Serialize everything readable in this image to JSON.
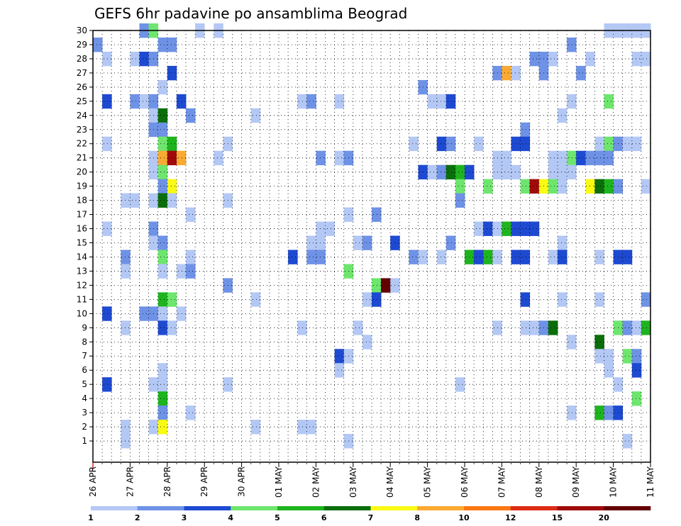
{
  "chart_data": {
    "type": "heatmap",
    "title": "GEFS 6hr padavine po ansamblima Beograd",
    "y_members": [
      "1",
      "2",
      "3",
      "4",
      "5",
      "6",
      "7",
      "8",
      "9",
      "10",
      "11",
      "12",
      "13",
      "14",
      "15",
      "16",
      "17",
      "18",
      "19",
      "20",
      "21",
      "22",
      "23",
      "24",
      "25",
      "26",
      "27",
      "28",
      "29",
      "30"
    ],
    "x_dates": [
      "26 APR",
      "27 APR",
      "28 APR",
      "29 APR",
      "30 APR",
      "01 MAY",
      "02 MAY",
      "03 MAY",
      "04 MAY",
      "05 MAY",
      "06 MAY",
      "07 MAY",
      "08 MAY",
      "09 MAY",
      "10 MAY",
      "11 MAY"
    ],
    "steps_per_day": 4,
    "total_steps": 60,
    "grid": true,
    "legend": {
      "position": "bottom",
      "labels": [
        "1",
        "2",
        "3",
        "4",
        "5",
        "6",
        "7",
        "8",
        "10",
        "12",
        "15",
        "20"
      ],
      "colors": [
        "#b4c8f5",
        "#6e92e6",
        "#1e4ad2",
        "#6ee66e",
        "#1eb41e",
        "#0a6e0a",
        "#fafa14",
        "#faaa32",
        "#fa7814",
        "#dc2d14",
        "#a00a0a",
        "#640000"
      ]
    },
    "cells": [
      [
        30,
        5,
        2
      ],
      [
        30,
        6,
        4
      ],
      [
        30,
        11,
        1
      ],
      [
        30,
        13,
        1
      ],
      [
        30,
        55,
        1
      ],
      [
        30,
        56,
        1
      ],
      [
        30,
        57,
        1
      ],
      [
        30,
        58,
        1
      ],
      [
        30,
        59,
        1
      ],
      [
        29,
        0,
        2
      ],
      [
        29,
        7,
        2
      ],
      [
        29,
        8,
        2
      ],
      [
        29,
        51,
        2
      ],
      [
        28,
        1,
        1
      ],
      [
        28,
        4,
        1
      ],
      [
        28,
        5,
        3
      ],
      [
        28,
        6,
        2
      ],
      [
        28,
        47,
        2
      ],
      [
        28,
        48,
        2
      ],
      [
        28,
        49,
        1
      ],
      [
        28,
        53,
        1
      ],
      [
        28,
        58,
        1
      ],
      [
        28,
        59,
        1
      ],
      [
        27,
        8,
        3
      ],
      [
        27,
        43,
        2
      ],
      [
        27,
        44,
        8
      ],
      [
        27,
        45,
        1
      ],
      [
        27,
        48,
        2
      ],
      [
        27,
        52,
        2
      ],
      [
        26,
        7,
        1
      ],
      [
        26,
        35,
        2
      ],
      [
        25,
        1,
        3
      ],
      [
        25,
        4,
        2
      ],
      [
        25,
        5,
        1
      ],
      [
        25,
        6,
        2
      ],
      [
        25,
        9,
        3
      ],
      [
        25,
        22,
        1
      ],
      [
        25,
        23,
        2
      ],
      [
        25,
        26,
        1
      ],
      [
        25,
        36,
        1
      ],
      [
        25,
        37,
        1
      ],
      [
        25,
        38,
        3
      ],
      [
        25,
        51,
        1
      ],
      [
        25,
        55,
        4
      ],
      [
        24,
        6,
        1
      ],
      [
        24,
        7,
        6
      ],
      [
        24,
        10,
        2
      ],
      [
        24,
        17,
        1
      ],
      [
        24,
        50,
        1
      ],
      [
        23,
        6,
        2
      ],
      [
        23,
        7,
        2
      ],
      [
        23,
        46,
        2
      ],
      [
        22,
        1,
        1
      ],
      [
        22,
        7,
        4
      ],
      [
        22,
        8,
        5
      ],
      [
        22,
        14,
        1
      ],
      [
        22,
        34,
        1
      ],
      [
        22,
        37,
        3
      ],
      [
        22,
        38,
        2
      ],
      [
        22,
        41,
        1
      ],
      [
        22,
        45,
        3
      ],
      [
        22,
        46,
        3
      ],
      [
        22,
        54,
        1
      ],
      [
        22,
        55,
        4
      ],
      [
        22,
        56,
        2
      ],
      [
        22,
        57,
        1
      ],
      [
        22,
        58,
        1
      ],
      [
        21,
        6,
        1
      ],
      [
        21,
        7,
        8
      ],
      [
        21,
        8,
        11
      ],
      [
        21,
        9,
        8
      ],
      [
        21,
        13,
        1
      ],
      [
        21,
        24,
        2
      ],
      [
        21,
        26,
        1
      ],
      [
        21,
        27,
        2
      ],
      [
        21,
        43,
        1
      ],
      [
        21,
        44,
        1
      ],
      [
        21,
        49,
        1
      ],
      [
        21,
        50,
        1
      ],
      [
        21,
        51,
        4
      ],
      [
        21,
        52,
        3
      ],
      [
        21,
        53,
        2
      ],
      [
        21,
        54,
        2
      ],
      [
        21,
        55,
        2
      ],
      [
        20,
        6,
        1
      ],
      [
        20,
        7,
        4
      ],
      [
        20,
        35,
        3
      ],
      [
        20,
        36,
        1
      ],
      [
        20,
        37,
        2
      ],
      [
        20,
        38,
        6
      ],
      [
        20,
        39,
        5
      ],
      [
        20,
        40,
        3
      ],
      [
        20,
        43,
        1
      ],
      [
        20,
        44,
        1
      ],
      [
        20,
        45,
        1
      ],
      [
        20,
        49,
        1
      ],
      [
        20,
        50,
        1
      ],
      [
        20,
        51,
        1
      ],
      [
        19,
        7,
        2
      ],
      [
        19,
        8,
        7
      ],
      [
        19,
        39,
        4
      ],
      [
        19,
        42,
        4
      ],
      [
        19,
        46,
        4
      ],
      [
        19,
        47,
        11
      ],
      [
        19,
        48,
        7
      ],
      [
        19,
        49,
        4
      ],
      [
        19,
        50,
        1
      ],
      [
        19,
        53,
        7
      ],
      [
        19,
        54,
        6
      ],
      [
        19,
        55,
        5
      ],
      [
        19,
        56,
        2
      ],
      [
        19,
        59,
        1
      ],
      [
        18,
        3,
        1
      ],
      [
        18,
        4,
        1
      ],
      [
        18,
        6,
        1
      ],
      [
        18,
        7,
        6
      ],
      [
        18,
        8,
        1
      ],
      [
        18,
        14,
        1
      ],
      [
        18,
        39,
        2
      ],
      [
        17,
        10,
        1
      ],
      [
        17,
        27,
        1
      ],
      [
        17,
        30,
        2
      ],
      [
        16,
        1,
        1
      ],
      [
        16,
        6,
        2
      ],
      [
        16,
        24,
        1
      ],
      [
        16,
        25,
        1
      ],
      [
        16,
        41,
        1
      ],
      [
        16,
        42,
        3
      ],
      [
        16,
        43,
        1
      ],
      [
        16,
        44,
        5
      ],
      [
        16,
        45,
        3
      ],
      [
        16,
        46,
        3
      ],
      [
        16,
        47,
        3
      ],
      [
        15,
        6,
        1
      ],
      [
        15,
        7,
        2
      ],
      [
        15,
        23,
        1
      ],
      [
        15,
        24,
        1
      ],
      [
        15,
        28,
        1
      ],
      [
        15,
        29,
        2
      ],
      [
        15,
        32,
        3
      ],
      [
        15,
        38,
        2
      ],
      [
        15,
        50,
        1
      ],
      [
        14,
        3,
        2
      ],
      [
        14,
        7,
        4
      ],
      [
        14,
        10,
        1
      ],
      [
        14,
        21,
        3
      ],
      [
        14,
        23,
        2
      ],
      [
        14,
        24,
        2
      ],
      [
        14,
        34,
        2
      ],
      [
        14,
        35,
        1
      ],
      [
        14,
        37,
        1
      ],
      [
        14,
        40,
        5
      ],
      [
        14,
        41,
        3
      ],
      [
        14,
        42,
        5
      ],
      [
        14,
        43,
        1
      ],
      [
        14,
        45,
        3
      ],
      [
        14,
        46,
        3
      ],
      [
        14,
        49,
        1
      ],
      [
        14,
        50,
        3
      ],
      [
        14,
        54,
        1
      ],
      [
        14,
        56,
        3
      ],
      [
        14,
        57,
        3
      ],
      [
        13,
        3,
        1
      ],
      [
        13,
        7,
        1
      ],
      [
        13,
        9,
        1
      ],
      [
        13,
        10,
        2
      ],
      [
        13,
        27,
        4
      ],
      [
        12,
        14,
        2
      ],
      [
        12,
        30,
        4
      ],
      [
        12,
        31,
        12
      ],
      [
        12,
        32,
        1
      ],
      [
        11,
        7,
        5
      ],
      [
        11,
        8,
        4
      ],
      [
        11,
        17,
        1
      ],
      [
        11,
        29,
        1
      ],
      [
        11,
        30,
        3
      ],
      [
        11,
        46,
        3
      ],
      [
        11,
        50,
        1
      ],
      [
        11,
        54,
        1
      ],
      [
        11,
        59,
        2
      ],
      [
        10,
        1,
        3
      ],
      [
        10,
        5,
        2
      ],
      [
        10,
        6,
        2
      ],
      [
        10,
        7,
        1
      ],
      [
        10,
        9,
        1
      ],
      [
        9,
        3,
        1
      ],
      [
        9,
        7,
        3
      ],
      [
        9,
        8,
        1
      ],
      [
        9,
        22,
        1
      ],
      [
        9,
        28,
        1
      ],
      [
        9,
        43,
        1
      ],
      [
        9,
        46,
        1
      ],
      [
        9,
        47,
        1
      ],
      [
        9,
        48,
        2
      ],
      [
        9,
        49,
        6
      ],
      [
        9,
        56,
        4
      ],
      [
        9,
        57,
        2
      ],
      [
        9,
        58,
        1
      ],
      [
        9,
        59,
        5
      ],
      [
        8,
        29,
        1
      ],
      [
        8,
        51,
        1
      ],
      [
        8,
        54,
        6
      ],
      [
        7,
        26,
        3
      ],
      [
        7,
        27,
        1
      ],
      [
        7,
        54,
        1
      ],
      [
        7,
        55,
        1
      ],
      [
        7,
        57,
        4
      ],
      [
        7,
        58,
        2
      ],
      [
        6,
        7,
        1
      ],
      [
        6,
        26,
        1
      ],
      [
        6,
        55,
        1
      ],
      [
        6,
        58,
        3
      ],
      [
        5,
        1,
        3
      ],
      [
        5,
        6,
        1
      ],
      [
        5,
        7,
        1
      ],
      [
        5,
        14,
        1
      ],
      [
        5,
        39,
        1
      ],
      [
        5,
        56,
        1
      ],
      [
        4,
        7,
        5
      ],
      [
        4,
        58,
        4
      ],
      [
        3,
        7,
        2
      ],
      [
        3,
        10,
        1
      ],
      [
        3,
        51,
        1
      ],
      [
        3,
        54,
        5
      ],
      [
        3,
        55,
        2
      ],
      [
        3,
        56,
        3
      ],
      [
        2,
        3,
        1
      ],
      [
        2,
        6,
        1
      ],
      [
        2,
        7,
        7
      ],
      [
        2,
        17,
        1
      ],
      [
        2,
        22,
        1
      ],
      [
        2,
        23,
        1
      ],
      [
        1,
        3,
        1
      ],
      [
        1,
        27,
        1
      ],
      [
        1,
        57,
        1
      ]
    ]
  }
}
